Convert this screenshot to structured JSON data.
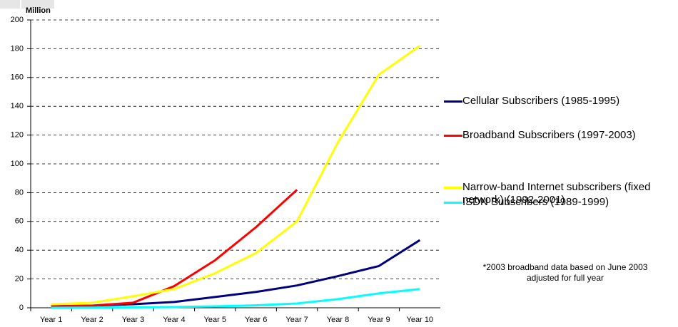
{
  "chart_data": {
    "type": "line",
    "y_label": "Million",
    "categories": [
      "Year 1",
      "Year 2",
      "Year 3",
      "Year 4",
      "Year 5",
      "Year 6",
      "Year 7",
      "Year 8",
      "Year 9",
      "Year 10"
    ],
    "series": [
      {
        "name": "Cellular Subscribers (1985-1995)",
        "color": "#000080",
        "values": [
          1,
          1.5,
          2.5,
          4,
          7.5,
          11,
          15.5,
          22,
          29,
          47
        ]
      },
      {
        "name": "Broadband Subscribers (1997-2003)",
        "color": "#ff0000",
        "values": [
          1,
          1.5,
          3.5,
          15,
          33,
          56,
          82,
          null,
          null,
          null
        ]
      },
      {
        "name": "Narrow-band Internet subscribers (fixed network) (1992-2001)",
        "color": "#ffff00",
        "values": [
          2.5,
          3.5,
          8,
          13,
          24,
          38,
          60,
          115,
          162,
          182
        ]
      },
      {
        "name": "ISDN Subscribers (1989-1999)",
        "color": "#00ffff",
        "values": [
          0,
          0.1,
          0.3,
          0.5,
          1,
          1.7,
          3,
          6,
          10,
          13
        ]
      }
    ],
    "ylim": [
      0,
      200
    ],
    "yticks": [
      0,
      20,
      40,
      60,
      80,
      100,
      120,
      140,
      160,
      180,
      200
    ],
    "grid": true,
    "annotation": "*2003 broadband data based on June 2003 adjusted for full year"
  }
}
